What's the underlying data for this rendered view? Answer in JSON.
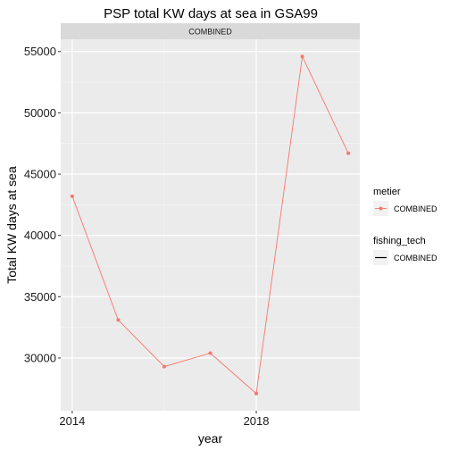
{
  "chart_data": {
    "type": "line",
    "title": "PSP total KW days at sea in GSA99",
    "xlabel": "year",
    "ylabel": "Total KW days at sea",
    "facet_label": "COMBINED",
    "x": [
      2014,
      2015,
      2016,
      2017,
      2018,
      2019,
      2020
    ],
    "series": [
      {
        "name": "COMBINED",
        "values": [
          43200,
          33100,
          29300,
          30400,
          27100,
          54600,
          46700
        ],
        "color": "#F8766D"
      }
    ],
    "x_ticks": [
      2014,
      2018
    ],
    "y_ticks": [
      30000,
      35000,
      40000,
      45000,
      50000,
      55000
    ],
    "xlim": [
      2013.75,
      2020.25
    ],
    "ylim": [
      25700,
      56000
    ],
    "grid": true,
    "legend": {
      "placement": "right",
      "groups": [
        {
          "title": "metier",
          "label": "COMBINED",
          "key": "point-line",
          "color": "#F8766D"
        },
        {
          "title": "fishing_tech",
          "label": "COMBINED",
          "key": "line",
          "color": "#000000"
        }
      ]
    }
  }
}
